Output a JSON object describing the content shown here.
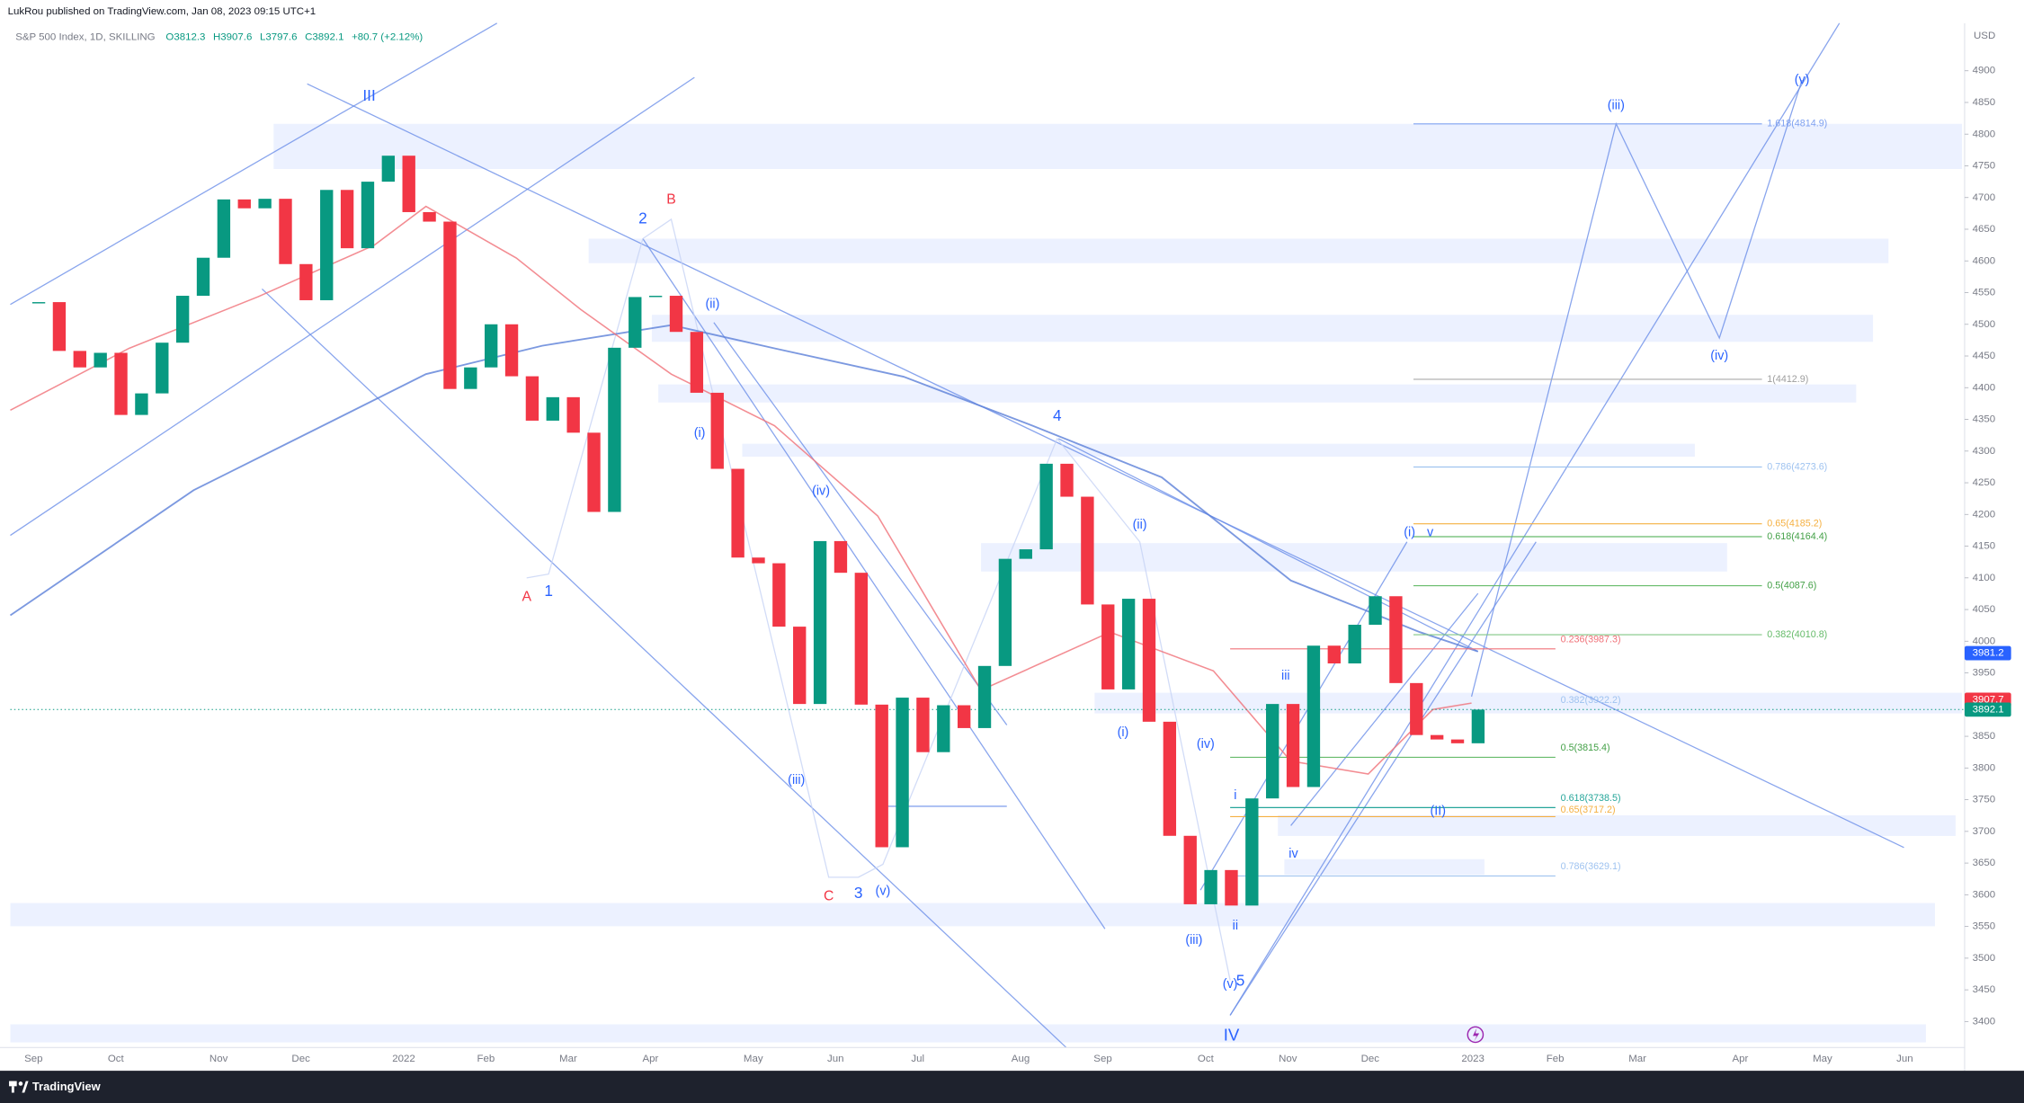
{
  "header": {
    "text": "LukRou published on TradingView.com, Jan 08, 2023 09:15 UTC+1"
  },
  "legend": {
    "symbol": "S&P 500 Index, 1D, SKILLING",
    "ohlc": [
      "O3812.3",
      "H3907.6",
      "L3797.6",
      "C3892.1",
      "+80.7 (+2.12%)"
    ]
  },
  "currency": "USD",
  "footer": {
    "brand": "TradingView"
  },
  "chart_data": {
    "type": "candlestick",
    "categories": [
      "Sep",
      null,
      null,
      null,
      "Oct",
      null,
      null,
      null,
      null,
      "Nov",
      null,
      null,
      null,
      "Dec",
      null,
      null,
      null,
      null,
      "2022",
      null,
      null,
      null,
      "Feb",
      null,
      null,
      null,
      "Mar",
      null,
      null,
      null,
      "Apr",
      null,
      null,
      null,
      null,
      "May",
      null,
      null,
      null,
      "Jun",
      null,
      null,
      null,
      "Jul",
      null,
      null,
      null,
      null,
      "Aug",
      null,
      null,
      null,
      "Sep",
      null,
      null,
      null,
      null,
      "Oct",
      null,
      null,
      null,
      "Nov",
      null,
      null,
      null,
      "Dec",
      null,
      null,
      null,
      null,
      "2023",
      null,
      null,
      null,
      "Feb",
      null,
      null,
      null,
      "Mar",
      null,
      null,
      null,
      null,
      "Apr",
      null,
      null,
      null,
      "May",
      null,
      null,
      null,
      "Jun",
      null,
      null,
      null
    ],
    "values": [
      4535,
      4458,
      4432,
      4455,
      4357,
      4391,
      4471,
      4545,
      4605,
      4697,
      4683,
      4698,
      4595,
      4538,
      4712,
      4620,
      4725,
      4766,
      4677,
      4662,
      4398,
      4432,
      4500,
      4418,
      4348,
      4385,
      4329,
      4204,
      4463,
      4543,
      4545,
      4488,
      4392,
      4272,
      4132,
      4123,
      4023,
      3901,
      4158,
      4108,
      3900,
      3675,
      3911,
      3825,
      3899,
      3863,
      3961,
      4130,
      4145,
      4280,
      4228,
      4058,
      3924,
      4067,
      3873,
      3693,
      3585,
      3639,
      3583,
      3752,
      3901,
      3770,
      3993,
      3965,
      4026,
      4071,
      3934,
      3852,
      3845,
      3839,
      3892.1,
      null,
      null,
      null,
      null,
      null,
      null,
      null,
      null,
      null,
      null,
      null,
      null,
      null,
      null,
      null,
      null,
      null,
      null,
      null,
      null,
      null,
      null,
      null,
      null
    ],
    "up_color": "#089981",
    "down_color": "#f23645",
    "ylim": [
      3359,
      4975
    ],
    "yticks": [
      3400,
      3450,
      3500,
      3550,
      3600,
      3650,
      3700,
      3750,
      3800,
      3850,
      3900,
      3950,
      4000,
      4050,
      4100,
      4150,
      4200,
      4250,
      4300,
      4350,
      4400,
      4450,
      4500,
      4550,
      4600,
      4650,
      4700,
      4750,
      4800,
      4850,
      4900
    ],
    "badges": [
      {
        "value": 3981.2,
        "color": "#2962ff"
      },
      {
        "value": 3907.7,
        "color": "#f23645"
      },
      {
        "value": 3892.1,
        "color": "#089981"
      }
    ],
    "annotations": [
      "III",
      "2",
      "B",
      "(ii)",
      "(i)",
      "A",
      "1",
      "4",
      "(iv)",
      "(ii)",
      "(i)",
      "(iii)",
      "C",
      "3",
      "(v)",
      "(iv)",
      "iii",
      "(i)",
      "v",
      "(II)",
      "iv",
      "i",
      "ii",
      "(iii)",
      "(v)",
      "5",
      "IV",
      "(iii)",
      "(iv)",
      "(v)"
    ],
    "fib_labels": [
      "1.618(4814.9)",
      "1(4412.9)",
      "0.786(4273.6)",
      "0.65(4185.2)",
      "0.618(4164.4)",
      "0.5(4087.6)",
      "0.382(4010.8)",
      "0.236(3987.3)",
      "0.382(3922.2)",
      "0.5(3815.4)",
      "0.618(3738.5)",
      "0.65(3717.2)",
      "0.786(3629.1)"
    ]
  }
}
